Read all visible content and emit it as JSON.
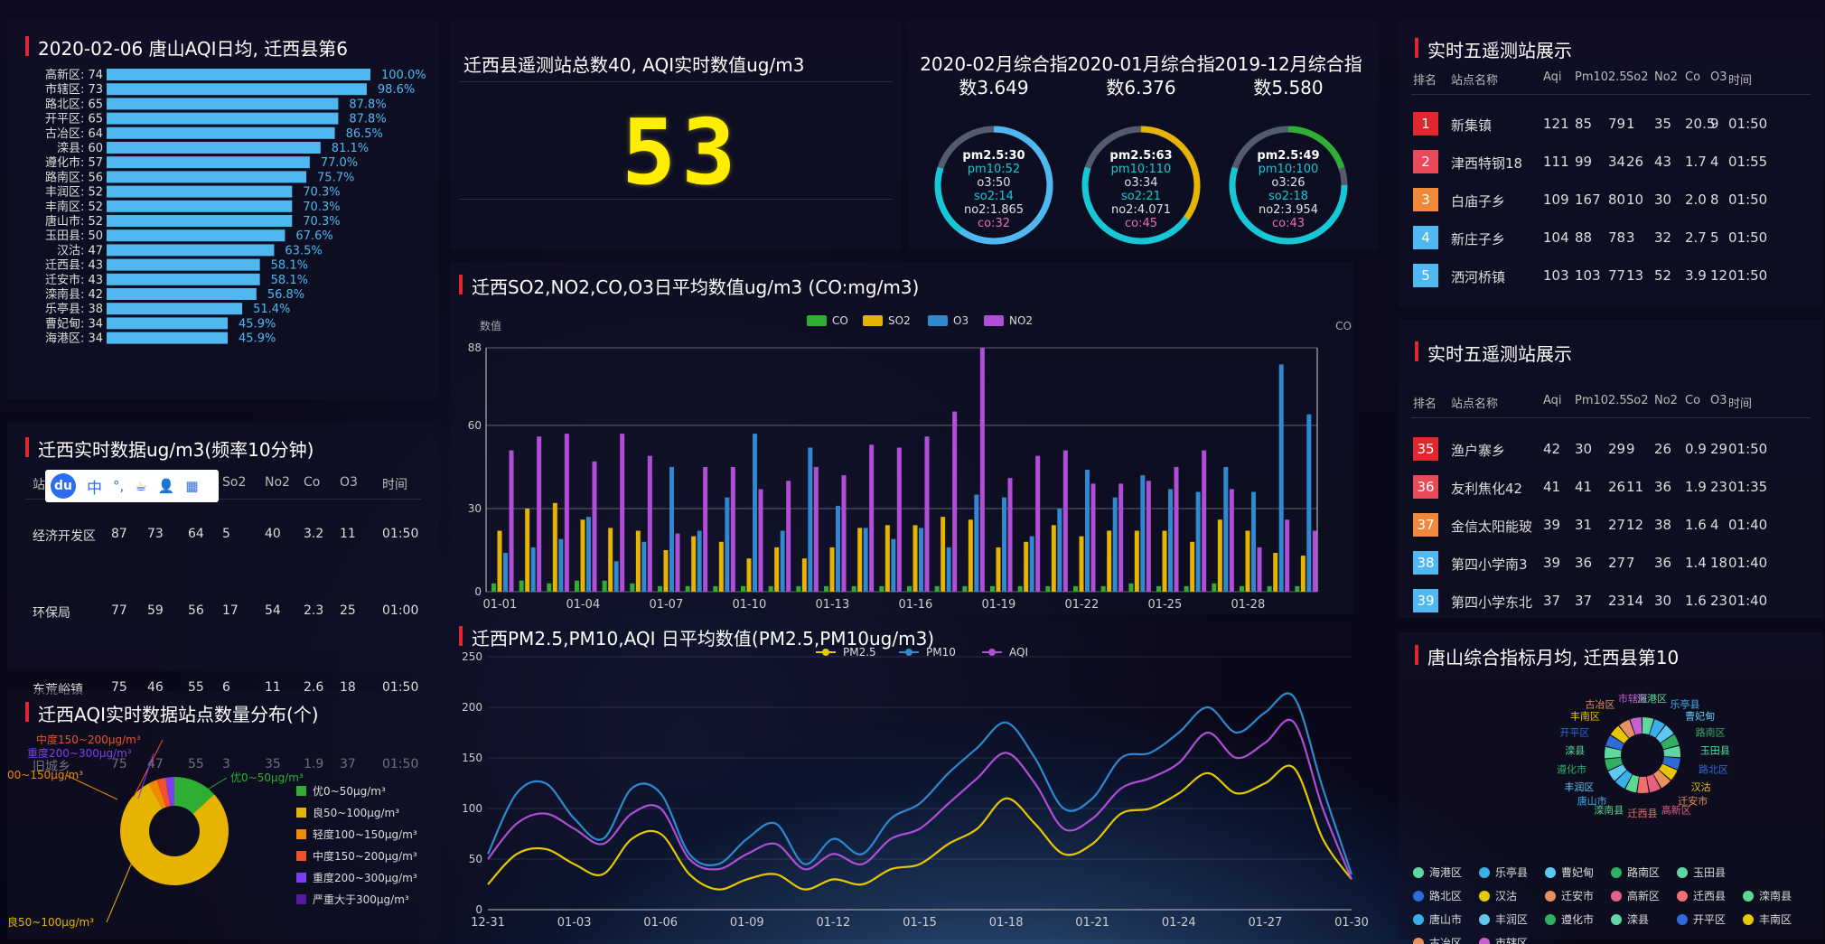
{
  "aqi_rank": {
    "title": "2020-02-06 唐山AQI日均, 迁西县第6",
    "chart_data": {
      "type": "bar",
      "orientation": "horizontal",
      "categories": [
        "高新区: 74",
        "市辖区: 73",
        "路北区: 65",
        "开平区: 65",
        "古冶区: 64",
        "滦县: 60",
        "遵化市: 57",
        "路南区: 56",
        "丰润区: 52",
        "丰南区: 52",
        "唐山市: 52",
        "玉田县: 50",
        "汉沽: 47",
        "迁西县: 43",
        "迁安市: 43",
        "滦南县: 42",
        "乐亭县: 38",
        "曹妃甸: 34",
        "海港区: 34"
      ],
      "values": [
        100.0,
        98.6,
        87.8,
        87.8,
        86.5,
        81.1,
        77.0,
        75.7,
        70.3,
        70.3,
        70.3,
        67.6,
        63.5,
        58.1,
        58.1,
        56.8,
        51.4,
        45.9,
        45.9
      ],
      "labels": [
        "100.0%",
        "98.6%",
        "87.8%",
        "87.8%",
        "86.5%",
        "81.1%",
        "77.0%",
        "75.7%",
        "70.3%",
        "70.3%",
        "70.3%",
        "67.6%",
        "63.5%",
        "58.1%",
        "58.1%",
        "56.8%",
        "51.4%",
        "45.9%",
        "45.9%"
      ],
      "color": "#4fb8f0"
    }
  },
  "realtime": {
    "title": "迁西实时数据ug/m3(频率10分钟)",
    "headers": [
      "站点",
      "",
      "",
      "",
      "So2",
      "No2",
      "Co",
      "O3",
      "时间"
    ],
    "rows": [
      [
        "经济开发区",
        "87",
        "73",
        "64",
        "5",
        "40",
        "3.2",
        "11",
        "01:50"
      ],
      [
        "环保局",
        "77",
        "59",
        "56",
        "17",
        "54",
        "2.3",
        "25",
        "01:00"
      ],
      [
        "东荒峪镇",
        "75",
        "46",
        "55",
        "6",
        "11",
        "2.6",
        "18",
        "01:50"
      ],
      [
        "旧城乡",
        "75",
        "47",
        "55",
        "3",
        "35",
        "1.9",
        "37",
        "01:50"
      ]
    ],
    "toolbar": [
      "du",
      "中",
      "°,",
      "☕",
      "👤",
      "▦"
    ]
  },
  "dist": {
    "title": "迁西AQI实时数据站点数量分布(个)",
    "chart_data": {
      "type": "pie",
      "slices": [
        {
          "name": "优0~50μg/m³",
          "value": 5,
          "color": "#2fae34"
        },
        {
          "name": "良50~100μg/m³",
          "value": 30,
          "color": "#e6b400"
        },
        {
          "name": "轻度100~150μg/m³",
          "value": 1,
          "color": "#f08a00"
        },
        {
          "name": "中度150~200μg/m³",
          "value": 1,
          "color": "#f0502a"
        },
        {
          "name": "重度200~300μg/m³",
          "value": 1,
          "color": "#7b3ff0"
        },
        {
          "name": "严重大于300μg/m³",
          "value": 0,
          "color": "#5a1aa0"
        }
      ]
    },
    "callouts": [
      "优0~50μg/m³",
      "良50~100μg/m³",
      "00~150μg/m³",
      "中度150~200μg/m³",
      "重度200~300μg/m³"
    ]
  },
  "stations": {
    "title": "迁西县遥测站总数40, AQI实时数值ug/m3",
    "value": "53"
  },
  "composite": [
    {
      "title": "2020-02月综合指",
      "title2": "数3.649",
      "lines": [
        "pm2.5:30",
        "pm10:52",
        "o3:50",
        "so2:14",
        "no2:1.865",
        "co:32"
      ],
      "ring_color": "#4fb8f0",
      "ring_frac": 0.6
    },
    {
      "title": "2020-01月综合指",
      "title2": "数6.376",
      "lines": [
        "pm2.5:63",
        "pm10:110",
        "o3:34",
        "so2:21",
        "no2:4.071",
        "co:45"
      ],
      "ring_color": "#e6b400",
      "ring_frac": 0.35
    },
    {
      "title": "2019-12月综合指",
      "title2": "数5.580",
      "lines": [
        "pm2.5:49",
        "pm10:100",
        "o3:26",
        "so2:18",
        "no2:3.954",
        "co:43"
      ],
      "ring_color": "#2fae34",
      "ring_frac": 0.2
    }
  ],
  "gas": {
    "title": "迁西SO2,NO2,CO,O3日平均数值ug/m3 (CO:mg/m3)",
    "chart_data": {
      "type": "bar",
      "ylabel": "数值",
      "y2label": "CO",
      "ylim": [
        0,
        88
      ],
      "yticks": [
        0,
        30,
        60,
        88
      ],
      "x": [
        "01-01",
        "01-02",
        "01-03",
        "01-04",
        "01-05",
        "01-06",
        "01-07",
        "01-08",
        "01-09",
        "01-10",
        "01-11",
        "01-12",
        "01-13",
        "01-14",
        "01-15",
        "01-16",
        "01-17",
        "01-18",
        "01-19",
        "01-20",
        "01-21",
        "01-22",
        "01-23",
        "01-24",
        "01-25",
        "01-26",
        "01-27",
        "01-28",
        "01-29",
        "01-30"
      ],
      "xticks": [
        "01-01",
        "01-04",
        "01-07",
        "01-10",
        "01-13",
        "01-16",
        "01-19",
        "01-22",
        "01-25",
        "01-28"
      ],
      "series": [
        {
          "name": "CO",
          "color": "#2fae34",
          "values": [
            3,
            4,
            3,
            4,
            4,
            3,
            2,
            2,
            2,
            2,
            2,
            2,
            2,
            2,
            2,
            2,
            2,
            2,
            2,
            2,
            2,
            2,
            2,
            3,
            2,
            2,
            3,
            2,
            2,
            2
          ]
        },
        {
          "name": "SO2",
          "color": "#e6b400",
          "values": [
            22,
            30,
            32,
            26,
            23,
            22,
            15,
            20,
            18,
            12,
            16,
            12,
            16,
            23,
            24,
            24,
            27,
            26,
            16,
            18,
            24,
            20,
            22,
            22,
            22,
            18,
            26,
            22,
            14,
            13
          ]
        },
        {
          "name": "O3",
          "color": "#2f88d0",
          "values": [
            14,
            16,
            19,
            27,
            11,
            18,
            45,
            22,
            34,
            57,
            22,
            52,
            31,
            23,
            19,
            23,
            16,
            35,
            34,
            20,
            30,
            44,
            34,
            42,
            37,
            36,
            45,
            36,
            82,
            64
          ]
        },
        {
          "name": "NO2",
          "color": "#b04ed8",
          "values": [
            51,
            56,
            57,
            47,
            57,
            49,
            21,
            45,
            45,
            37,
            40,
            45,
            42,
            53,
            52,
            56,
            65,
            88,
            41,
            49,
            51,
            39,
            39,
            40,
            45,
            51,
            37,
            16,
            26,
            22
          ]
        }
      ]
    }
  },
  "pm": {
    "title": "迁西PM2.5,PM10,AQI 日平均数值(PM2.5,PM10ug/m3)",
    "chart_data": {
      "type": "line",
      "ylim": [
        0,
        250
      ],
      "yticks": [
        0,
        50,
        100,
        150,
        200,
        250
      ],
      "x": [
        "12-31",
        "01-01",
        "01-02",
        "01-03",
        "01-04",
        "01-05",
        "01-06",
        "01-07",
        "01-08",
        "01-09",
        "01-10",
        "01-11",
        "01-12",
        "01-13",
        "01-14",
        "01-15",
        "01-16",
        "01-17",
        "01-18",
        "01-19",
        "01-20",
        "01-21",
        "01-22",
        "01-23",
        "01-24",
        "01-25",
        "01-26",
        "01-27",
        "01-28",
        "01-29",
        "01-30"
      ],
      "xticks": [
        "12-31",
        "01-03",
        "01-06",
        "01-09",
        "01-12",
        "01-15",
        "01-18",
        "01-21",
        "01-24",
        "01-27",
        "01-30"
      ],
      "series": [
        {
          "name": "PM2.5",
          "color": "#e6c800",
          "values": [
            25,
            55,
            60,
            45,
            35,
            70,
            75,
            35,
            20,
            30,
            35,
            20,
            30,
            25,
            40,
            45,
            65,
            80,
            110,
            85,
            55,
            65,
            95,
            100,
            115,
            135,
            115,
            125,
            140,
            70,
            30
          ]
        },
        {
          "name": "PM10",
          "color": "#2f88d0",
          "values": [
            55,
            115,
            125,
            90,
            70,
            120,
            115,
            55,
            45,
            70,
            85,
            45,
            70,
            55,
            90,
            105,
            135,
            160,
            185,
            150,
            100,
            110,
            150,
            155,
            175,
            200,
            175,
            195,
            210,
            120,
            35
          ]
        },
        {
          "name": "AQI",
          "color": "#b04ed8",
          "values": [
            50,
            85,
            95,
            80,
            65,
            95,
            100,
            50,
            40,
            55,
            65,
            40,
            55,
            45,
            70,
            80,
            105,
            130,
            155,
            125,
            80,
            90,
            120,
            130,
            145,
            175,
            150,
            165,
            185,
            100,
            30
          ]
        }
      ]
    }
  },
  "top5a": {
    "title": "实时五遥测站展示",
    "headers": [
      "排名",
      "站点名称",
      "Aqi",
      "Pm10",
      "2.5",
      "So2",
      "No2",
      "Co",
      "O3",
      "时间"
    ],
    "rows": [
      [
        "1",
        "新集镇",
        "121",
        "85",
        "79",
        "1",
        "35",
        "20.5",
        "9",
        "01:50"
      ],
      [
        "2",
        "津西特钢18",
        "111",
        "99",
        "34",
        "26",
        "43",
        "1.7",
        "4",
        "01:55"
      ],
      [
        "3",
        "白庙子乡",
        "109",
        "167",
        "80",
        "10",
        "30",
        "2.0",
        "8",
        "01:50"
      ],
      [
        "4",
        "新庄子乡",
        "104",
        "88",
        "78",
        "3",
        "32",
        "2.7",
        "5",
        "01:50"
      ],
      [
        "5",
        "洒河桥镇",
        "103",
        "103",
        "77",
        "13",
        "52",
        "3.9",
        "12",
        "01:50"
      ]
    ],
    "rank_colors": [
      "#e0262e",
      "#e84a5a",
      "#f08a3a",
      "#4fb8f0",
      "#4fb8f0"
    ]
  },
  "top5b": {
    "title": "实时五遥测站展示",
    "headers": [
      "排名",
      "站点名称",
      "Aqi",
      "Pm10",
      "2.5",
      "So2",
      "No2",
      "Co",
      "O3",
      "时间"
    ],
    "rows": [
      [
        "35",
        "渔户寨乡",
        "42",
        "30",
        "29",
        "9",
        "26",
        "0.9",
        "29",
        "01:50"
      ],
      [
        "36",
        "友利焦化42",
        "41",
        "41",
        "26",
        "11",
        "36",
        "1.9",
        "23",
        "01:35"
      ],
      [
        "37",
        "金信太阳能玻",
        "39",
        "31",
        "27",
        "12",
        "38",
        "1.6",
        "4",
        "01:40"
      ],
      [
        "38",
        "第四小学南3",
        "39",
        "36",
        "27",
        "7",
        "36",
        "1.4",
        "18",
        "01:40"
      ],
      [
        "39",
        "第四小学东北",
        "37",
        "37",
        "23",
        "14",
        "30",
        "1.6",
        "23",
        "01:40"
      ]
    ],
    "rank_colors": [
      "#e0262e",
      "#e84a5a",
      "#f08a3a",
      "#4fb8f0",
      "#4fb8f0"
    ]
  },
  "monthly": {
    "title": "唐山综合指标月均, 迁西县第10",
    "chart_data": {
      "type": "pie",
      "slices": [
        {
          "name": "海港区",
          "color": "#5ed8a0",
          "value": 1
        },
        {
          "name": "乐亭县",
          "color": "#3ab0e8",
          "value": 1
        },
        {
          "name": "曹妃甸",
          "color": "#5ec8f0",
          "value": 1
        },
        {
          "name": "路南区",
          "color": "#2fae64",
          "value": 1
        },
        {
          "name": "玉田县",
          "color": "#5ed8a0",
          "value": 1
        },
        {
          "name": "路北区",
          "color": "#2f6ad8",
          "value": 1
        },
        {
          "name": "汉沽",
          "color": "#e6c800",
          "value": 1
        },
        {
          "name": "迁安市",
          "color": "#e89060",
          "value": 1
        },
        {
          "name": "高新区",
          "color": "#e86080",
          "value": 1
        },
        {
          "name": "迁西县",
          "color": "#f07070",
          "value": 1
        },
        {
          "name": "滦南县",
          "color": "#5ed890",
          "value": 1
        },
        {
          "name": "唐山市",
          "color": "#3ab0e8",
          "value": 1
        },
        {
          "name": "丰润区",
          "color": "#5ec8f0",
          "value": 1
        },
        {
          "name": "遵化市",
          "color": "#2fae64",
          "value": 1
        },
        {
          "name": "滦县",
          "color": "#5ed8a0",
          "value": 1
        },
        {
          "name": "开平区",
          "color": "#2f6ad8",
          "value": 1
        },
        {
          "name": "丰南区",
          "color": "#e6c800",
          "value": 1
        },
        {
          "name": "古冶区",
          "color": "#e89060",
          "value": 1
        },
        {
          "name": "市辖区",
          "color": "#c860d0",
          "value": 1
        }
      ]
    }
  }
}
